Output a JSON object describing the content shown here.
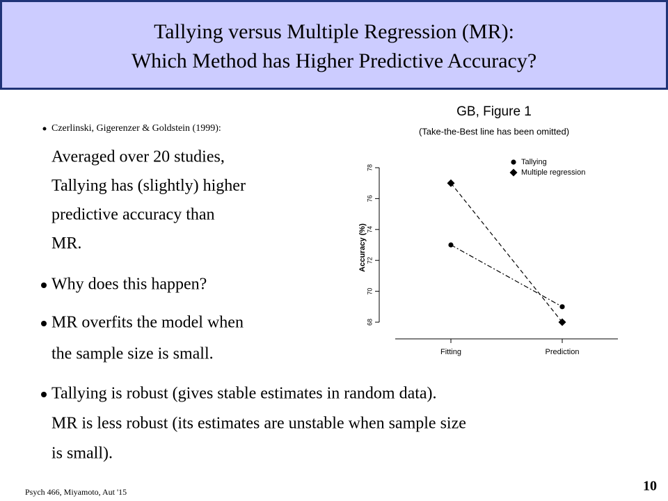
{
  "header": {
    "title_lines": [
      "Tallying versus Multiple Regression (MR):",
      "Which Method has Higher Predictive Accuracy?"
    ]
  },
  "body": {
    "citation": "Czerlinski, Gigerenzer & Goldstein (1999):",
    "finding_lines": [
      "Averaged over 20 studies,",
      "Tallying has (slightly) higher",
      "predictive accuracy than",
      "MR."
    ],
    "bullets": [
      {
        "lines": [
          "Why does this happen?"
        ]
      },
      {
        "lines": [
          "MR overfits the model when",
          "the sample size is small."
        ]
      },
      {
        "lines": [
          "Tallying is robust (gives stable estimates in random data).",
          "MR is less robust (its estimates are unstable when sample size",
          "is small)."
        ]
      }
    ]
  },
  "figure": {
    "title": "GB, Figure 1",
    "caption": "(Take-the-Best line has been omitted)"
  },
  "chart_data": {
    "type": "line",
    "y_label": "Accuracy (%)",
    "categories": [
      "Fitting",
      "Prediction"
    ],
    "series": [
      {
        "name": "Tallying",
        "color": "#000000",
        "marker": "circle",
        "line_style": "dashdot",
        "values": [
          73,
          69
        ]
      },
      {
        "name": "Multiple regression",
        "color": "#000000",
        "marker": "diamond",
        "line_style": "dashed",
        "values": [
          77,
          68
        ]
      }
    ],
    "ylim": [
      66.92,
      78.72
    ],
    "yticks": [
      68,
      70,
      72,
      74,
      76,
      78
    ],
    "legend": "top-left"
  },
  "footer": {
    "course": "Psych 466, Miyamoto, Aut '15",
    "page": "10"
  }
}
